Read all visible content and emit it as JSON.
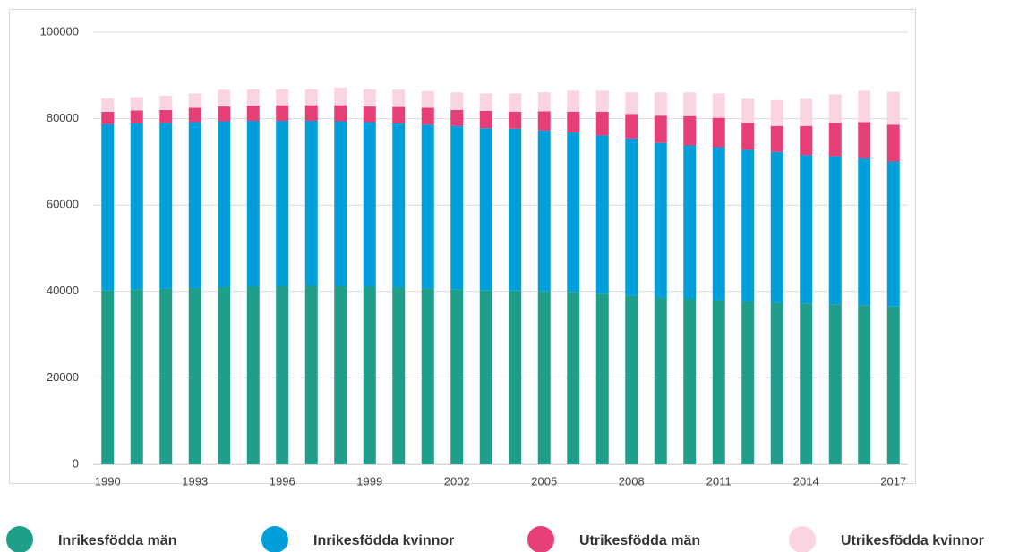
{
  "chart_data": {
    "type": "bar",
    "stacked": true,
    "categories": [
      "1990",
      null,
      null,
      "1993",
      null,
      null,
      "1996",
      null,
      null,
      "1999",
      null,
      null,
      "2002",
      null,
      null,
      "2005",
      null,
      null,
      "2008",
      null,
      null,
      "2011",
      null,
      null,
      "2014",
      null,
      null,
      "2017"
    ],
    "series": [
      {
        "name": "Inrikesfödda män",
        "color": "#1f9e89",
        "values": [
          40200,
          40500,
          40600,
          40800,
          41000,
          41100,
          41200,
          41300,
          41200,
          41100,
          40900,
          40700,
          40500,
          40300,
          40200,
          40100,
          39900,
          39500,
          39000,
          38600,
          38300,
          38000,
          37700,
          37400,
          37200,
          37000,
          36800,
          36500
        ]
      },
      {
        "name": "Inrikesfödda kvinnor",
        "color": "#009fdb",
        "values": [
          38500,
          38400,
          38400,
          38400,
          38400,
          38400,
          38300,
          38200,
          38200,
          38100,
          38000,
          37900,
          37800,
          37500,
          37500,
          37200,
          36900,
          36600,
          36400,
          35800,
          35500,
          35400,
          35100,
          34900,
          34400,
          34300,
          34000,
          33600
        ]
      },
      {
        "name": "Utrikesfödda män",
        "color": "#e63e77",
        "values": [
          2900,
          3000,
          3000,
          3300,
          3400,
          3500,
          3600,
          3600,
          3700,
          3600,
          3800,
          3900,
          3700,
          4000,
          3900,
          4400,
          4800,
          5500,
          5700,
          6300,
          6800,
          6800,
          6200,
          6000,
          6700,
          7700,
          8400,
          8500
        ]
      },
      {
        "name": "Utrikesfödda kvinnor",
        "color": "#fad4e3",
        "values": [
          3100,
          3100,
          3300,
          3300,
          3900,
          3800,
          3700,
          3700,
          4100,
          4000,
          4000,
          3900,
          4100,
          4000,
          4200,
          4400,
          4900,
          4900,
          5000,
          5400,
          5500,
          5600,
          5600,
          6000,
          6300,
          6600,
          7300,
          7600
        ]
      }
    ],
    "ylim": [
      0,
      100000
    ],
    "yticks": [
      0,
      20000,
      40000,
      60000,
      80000,
      100000
    ],
    "grid": true,
    "legend": "bottom"
  }
}
